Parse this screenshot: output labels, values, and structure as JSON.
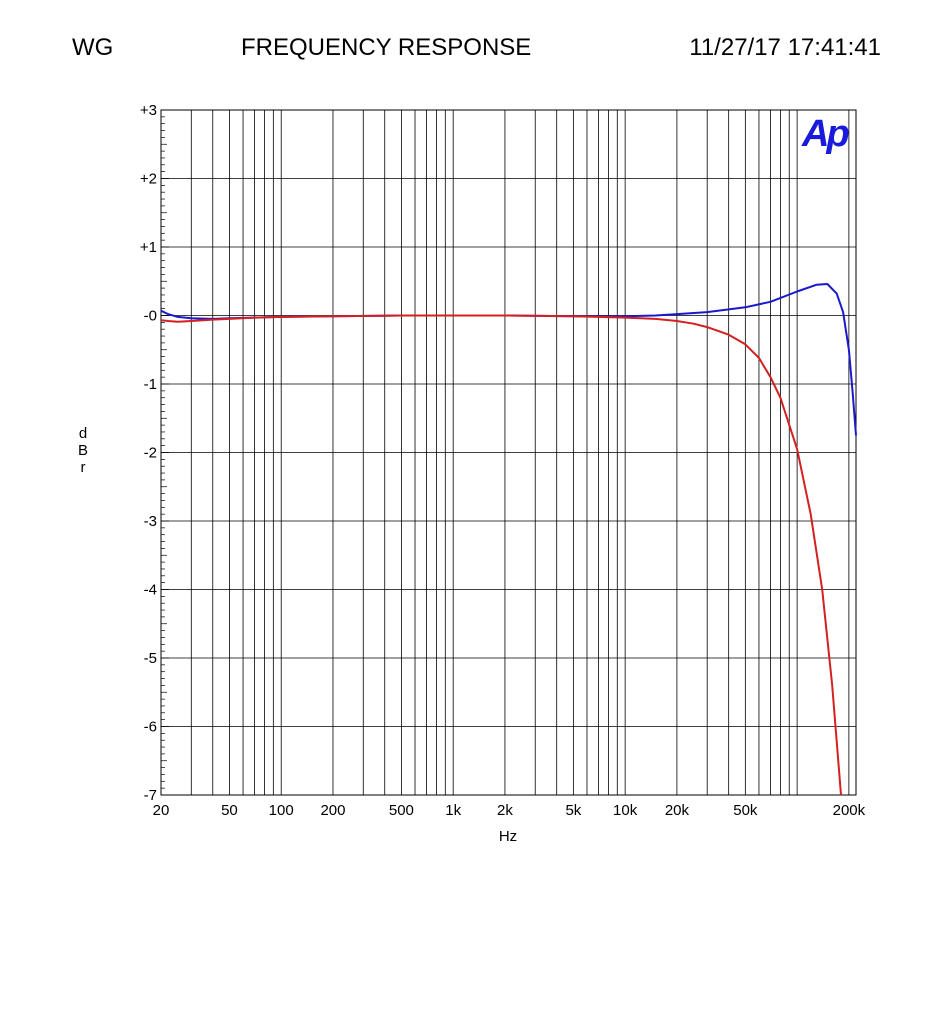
{
  "header": {
    "left": "WG",
    "title": "FREQUENCY RESPONSE",
    "timestamp": "11/27/17 17:41:41"
  },
  "logo": {
    "text": "Ap",
    "color": "#1a1adb"
  },
  "chart_data": {
    "type": "line",
    "title": "FREQUENCY RESPONSE",
    "xlabel": "Hz",
    "ylabel": "dBr",
    "xscale": "log",
    "xlim": [
      20,
      220000
    ],
    "ylim": [
      -7,
      3
    ],
    "grid": true,
    "x_tick_labels": [
      {
        "value": 20,
        "label": "20"
      },
      {
        "value": 50,
        "label": "50"
      },
      {
        "value": 100,
        "label": "100"
      },
      {
        "value": 200,
        "label": "200"
      },
      {
        "value": 500,
        "label": "500"
      },
      {
        "value": 1000,
        "label": "1k"
      },
      {
        "value": 2000,
        "label": "2k"
      },
      {
        "value": 5000,
        "label": "5k"
      },
      {
        "value": 10000,
        "label": "10k"
      },
      {
        "value": 20000,
        "label": "20k"
      },
      {
        "value": 50000,
        "label": "50k"
      },
      {
        "value": 200000,
        "label": "200k"
      }
    ],
    "y_tick_labels": [
      {
        "value": 3,
        "label": "+3"
      },
      {
        "value": 2,
        "label": "+2"
      },
      {
        "value": 1,
        "label": "+1"
      },
      {
        "value": 0,
        "label": "-0"
      },
      {
        "value": -1,
        "label": "-1"
      },
      {
        "value": -2,
        "label": "-2"
      },
      {
        "value": -3,
        "label": "-3"
      },
      {
        "value": -4,
        "label": "-4"
      },
      {
        "value": -5,
        "label": "-5"
      },
      {
        "value": -6,
        "label": "-6"
      },
      {
        "value": -7,
        "label": "-7"
      }
    ],
    "series": [
      {
        "color": "#1a1acc",
        "x": [
          20,
          22,
          25,
          30,
          40,
          50,
          70,
          100,
          200,
          500,
          1000,
          2000,
          5000,
          10000,
          15000,
          20000,
          30000,
          50000,
          70000,
          100000,
          130000,
          150000,
          170000,
          185000,
          200000,
          210000,
          220000
        ],
        "y": [
          0.07,
          0.02,
          -0.02,
          -0.04,
          -0.05,
          -0.04,
          -0.03,
          -0.02,
          -0.01,
          0.0,
          0.0,
          0.0,
          -0.01,
          -0.01,
          0.0,
          0.02,
          0.05,
          0.12,
          0.2,
          0.35,
          0.45,
          0.46,
          0.32,
          0.05,
          -0.5,
          -1.1,
          -1.75
        ]
      },
      {
        "color": "#d42020",
        "x": [
          20,
          22,
          25,
          30,
          40,
          50,
          70,
          100,
          200,
          500,
          1000,
          2000,
          5000,
          10000,
          15000,
          20000,
          25000,
          30000,
          40000,
          50000,
          60000,
          70000,
          80000,
          100000,
          120000,
          140000,
          160000,
          180000
        ],
        "y": [
          -0.07,
          -0.08,
          -0.09,
          -0.08,
          -0.06,
          -0.05,
          -0.03,
          -0.02,
          -0.01,
          0.0,
          0.0,
          0.0,
          -0.01,
          -0.03,
          -0.05,
          -0.08,
          -0.12,
          -0.17,
          -0.28,
          -0.42,
          -0.62,
          -0.9,
          -1.2,
          -1.95,
          -2.9,
          -4.0,
          -5.4,
          -7.0
        ]
      }
    ]
  }
}
